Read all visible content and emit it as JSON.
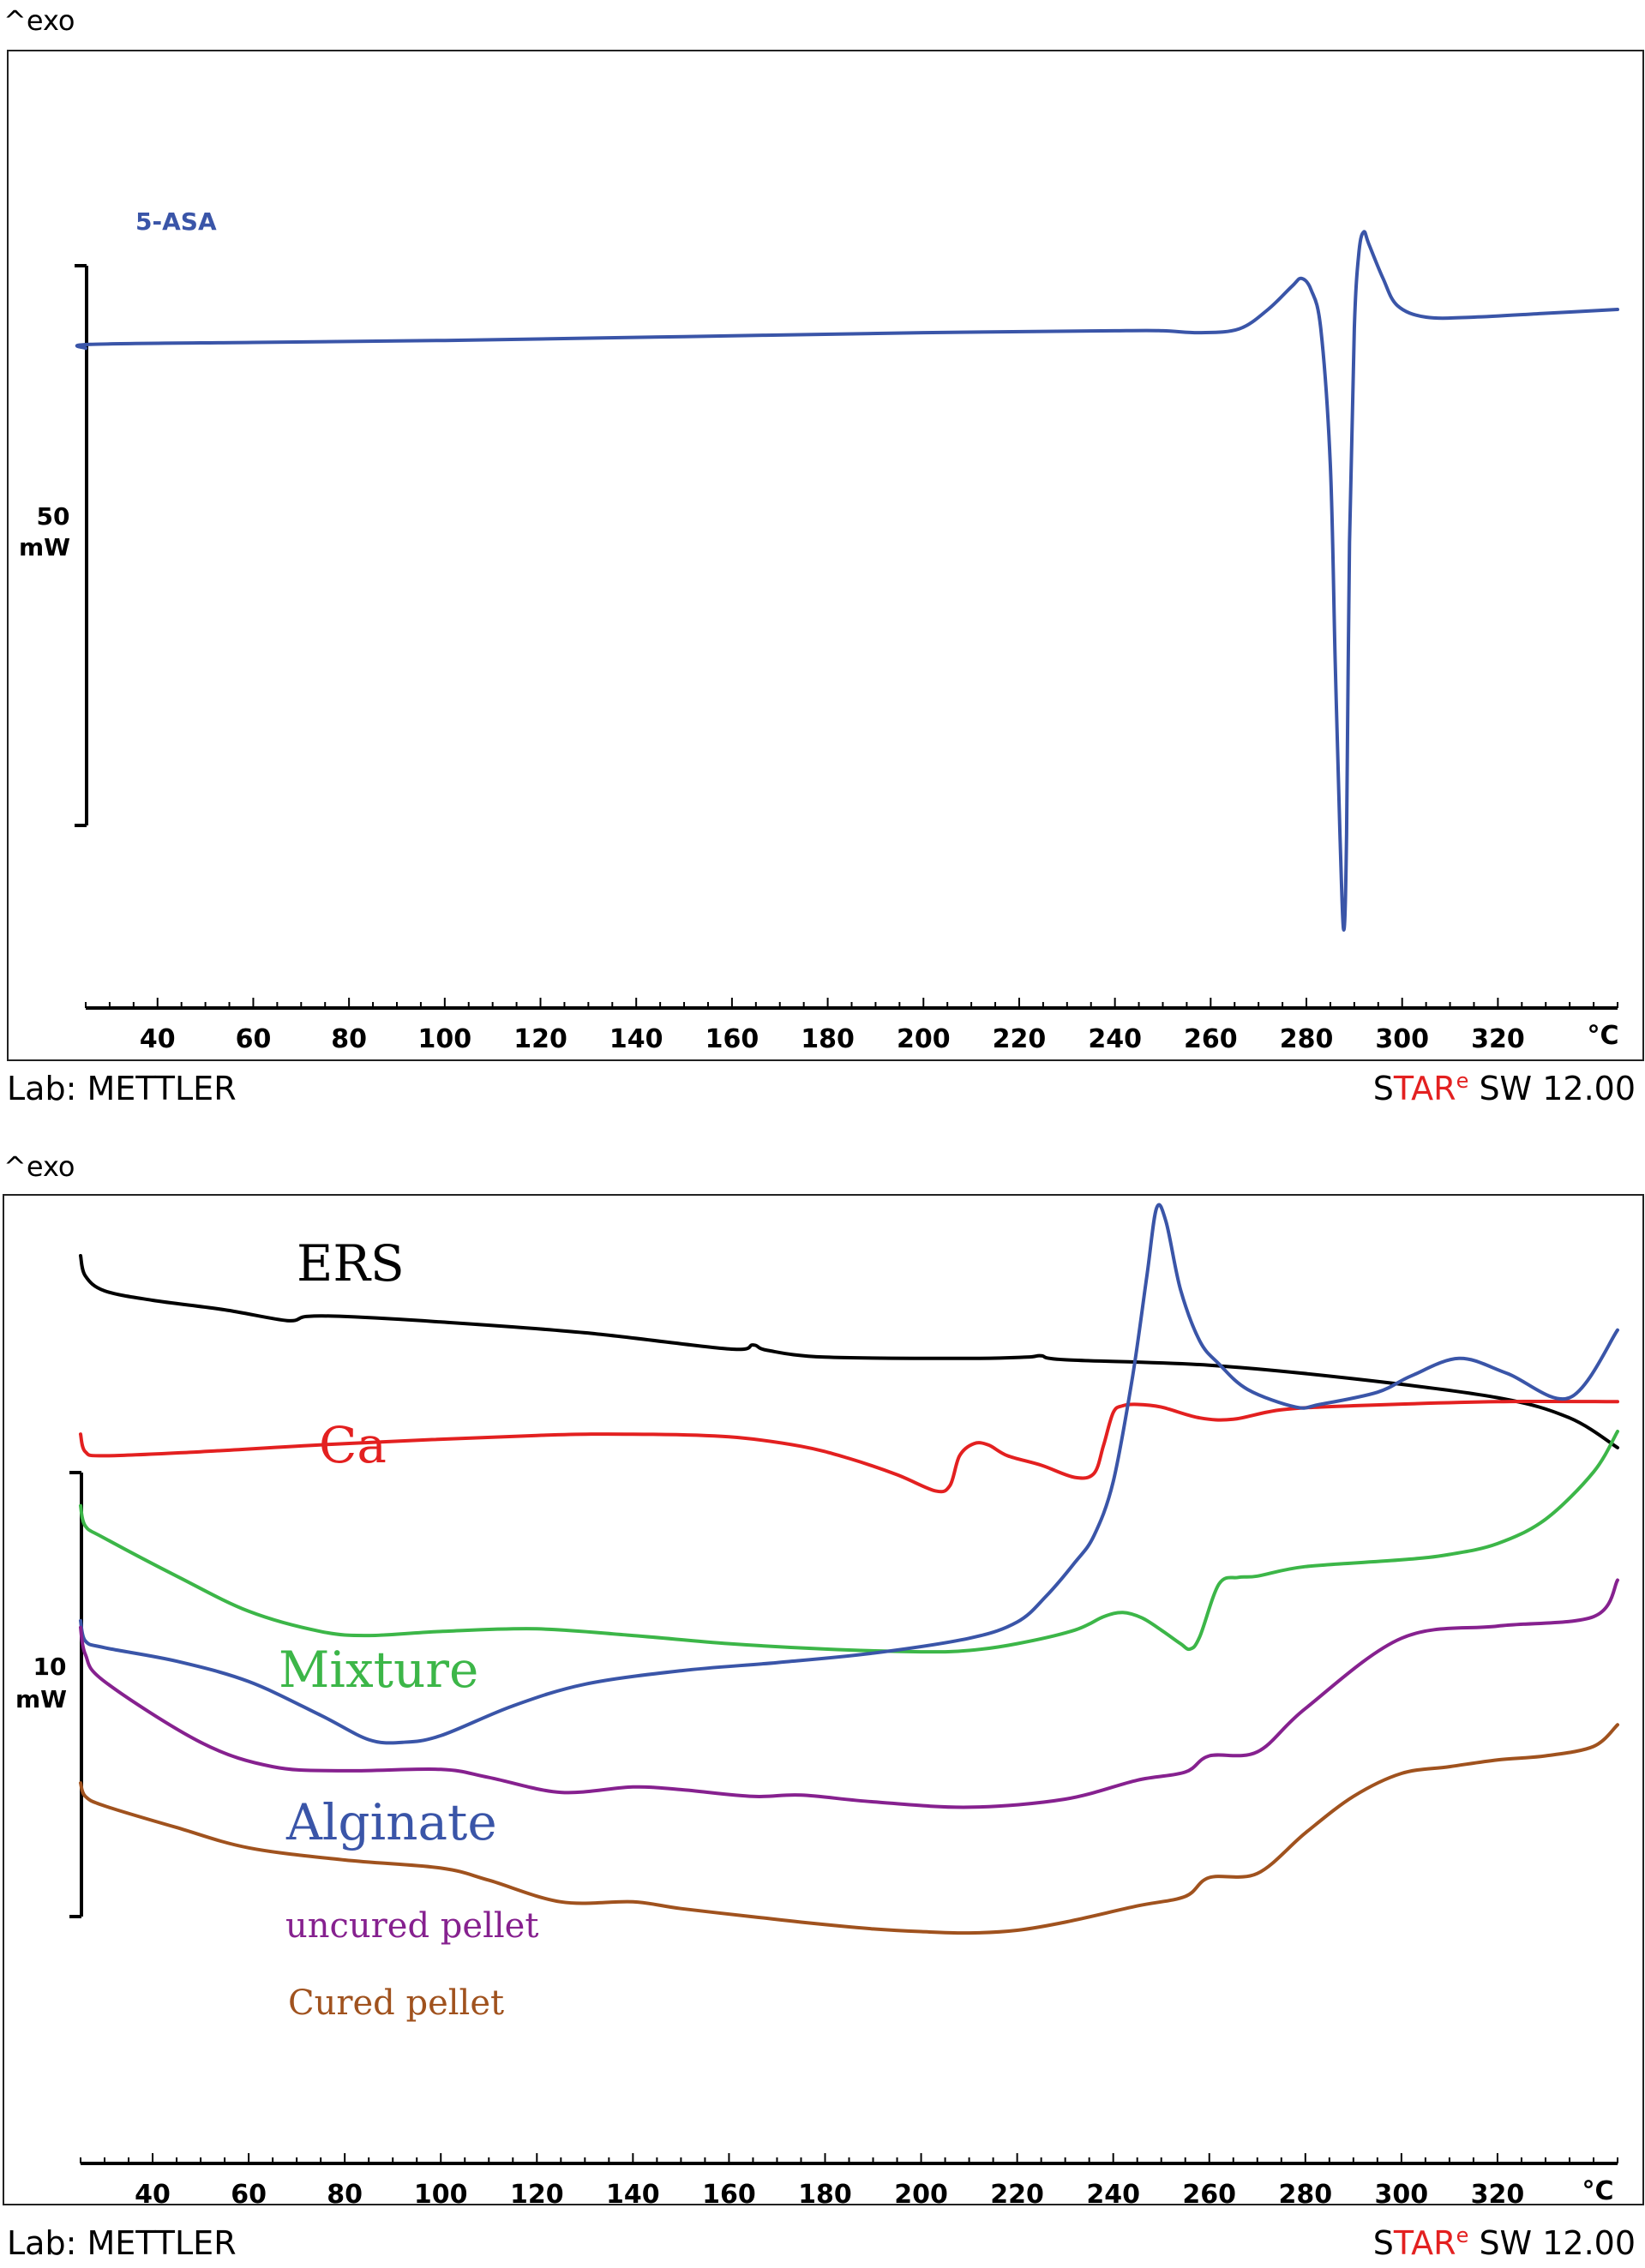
{
  "charts": [
    {
      "exo_label": "^exo",
      "footer_left": "Lab: METTLER",
      "footer_right": {
        "s": "S",
        "tar": "TAR",
        "e": "e",
        "rest": " SW 12.00"
      },
      "scale_bar": {
        "value": "50",
        "unit": "mW"
      },
      "x_unit": "°C"
    },
    {
      "exo_label": "^exo",
      "footer_left": "Lab: METTLER",
      "footer_right": {
        "s": "S",
        "tar": "TAR",
        "e": "e",
        "rest": " SW 12.00"
      },
      "scale_bar": {
        "value": "10",
        "unit": "mW"
      },
      "x_unit": "°C"
    }
  ],
  "chart_data": [
    {
      "type": "line",
      "title": "",
      "xlabel": "°C",
      "ylabel": "^exo",
      "xlim": [
        25,
        345
      ],
      "xticks": [
        40,
        60,
        80,
        100,
        120,
        140,
        160,
        180,
        200,
        220,
        240,
        260,
        280,
        300,
        320
      ],
      "ylim": [
        -150,
        50
      ],
      "series": [
        {
          "name": "5-ASA",
          "color": "#3a55a8",
          "x": [
            25,
            26,
            60,
            100,
            150,
            200,
            240,
            250,
            258,
            266,
            272,
            277,
            279,
            281,
            283,
            285,
            286,
            287,
            287.8,
            288.4,
            289,
            290,
            291,
            292,
            293,
            296,
            299,
            305,
            315,
            330,
            345
          ],
          "y": [
            0,
            1,
            1.5,
            2,
            3,
            4,
            4.5,
            4.5,
            4,
            5,
            10,
            16,
            18,
            15,
            5,
            -30,
            -80,
            -125,
            -150,
            -125,
            -50,
            5,
            25,
            30,
            27,
            18,
            11,
            8,
            8,
            9,
            10
          ]
        }
      ]
    },
    {
      "type": "line",
      "title": "",
      "xlabel": "°C",
      "ylabel": "^exo",
      "xlim": [
        25,
        345
      ],
      "xticks": [
        40,
        60,
        80,
        100,
        120,
        140,
        160,
        180,
        200,
        220,
        240,
        260,
        280,
        300,
        320
      ],
      "ylim": [
        -50,
        20
      ],
      "series": [
        {
          "name": "ERS",
          "color": "#000000",
          "x": [
            25,
            26,
            30,
            40,
            55,
            68,
            72,
            80,
            100,
            130,
            160,
            165,
            168,
            180,
            210,
            222,
            225,
            230,
            260,
            290,
            320,
            335,
            345
          ],
          "y": [
            15.5,
            14,
            12.9,
            12.2,
            11.5,
            10.7,
            11,
            11,
            10.6,
            9.8,
            8.6,
            8.9,
            8.5,
            8,
            7.9,
            8,
            8.1,
            7.8,
            7.4,
            6.4,
            5,
            3.5,
            1.3
          ]
        },
        {
          "name": "Ca",
          "color": "#e32020",
          "x": [
            25,
            26,
            30,
            50,
            80,
            120,
            140,
            160,
            175,
            185,
            195,
            203,
            206,
            208,
            211,
            214,
            218,
            225,
            232,
            236,
            238,
            240,
            242,
            245,
            250,
            258,
            265,
            275,
            290,
            320,
            345
          ],
          "y": [
            2.3,
            1,
            0.7,
            1,
            1.6,
            2.2,
            2.3,
            2.1,
            1.4,
            0.5,
            -0.7,
            -1.9,
            -1.5,
            0.7,
            1.6,
            1.5,
            0.7,
            0,
            -0.9,
            -0.6,
            1.5,
            3.9,
            4.4,
            4.5,
            4.3,
            3.5,
            3.4,
            4.1,
            4.4,
            4.7,
            4.7
          ]
        },
        {
          "name": "Mixture",
          "color": "#3cb648",
          "x": [
            25,
            26,
            30,
            45,
            60,
            75,
            85,
            100,
            120,
            140,
            160,
            180,
            200,
            210,
            220,
            232,
            238,
            242,
            246,
            250,
            254,
            256,
            258,
            262,
            266,
            270,
            280,
            300,
            310,
            320,
            330,
            340,
            345
          ],
          "y": [
            -3,
            -4.5,
            -5.4,
            -8.2,
            -10.8,
            -12.3,
            -12.6,
            -12.3,
            -12.1,
            -12.6,
            -13.2,
            -13.6,
            -13.8,
            -13.7,
            -13.2,
            -12.2,
            -11.2,
            -10.9,
            -11.3,
            -12.2,
            -13.2,
            -13.6,
            -12.7,
            -8.8,
            -8.3,
            -8.2,
            -7.5,
            -7,
            -6.6,
            -5.8,
            -4,
            -0.5,
            2.5
          ]
        },
        {
          "name": "Alginate",
          "color": "#3a55a8",
          "x": [
            25,
            26,
            30,
            45,
            60,
            75,
            85,
            92,
            100,
            115,
            130,
            150,
            170,
            190,
            210,
            220,
            226,
            232,
            236,
            240,
            244,
            247,
            249,
            251,
            254,
            258,
            262,
            268,
            278,
            283,
            295,
            302,
            312,
            322,
            335,
            345
          ],
          "y": [
            -11.5,
            -13,
            -13.5,
            -14.5,
            -16,
            -18.5,
            -20.3,
            -20.5,
            -20,
            -17.8,
            -16.2,
            -15.2,
            -14.6,
            -13.9,
            -12.8,
            -11.6,
            -9.7,
            -7.2,
            -5.2,
            -1.2,
            6.5,
            14,
            19,
            18,
            13,
            9.2,
            7.5,
            5.6,
            4.3,
            4.5,
            5.4,
            6.6,
            7.9,
            6.8,
            5,
            10
          ]
        },
        {
          "name": "uncured pellet",
          "color": "#86218f",
          "x": [
            25,
            26,
            30,
            50,
            65,
            80,
            100,
            110,
            125,
            140,
            150,
            165,
            175,
            190,
            210,
            230,
            245,
            255,
            260,
            270,
            280,
            300,
            320,
            340,
            345
          ],
          "y": [
            -12,
            -14,
            -16,
            -20.5,
            -22.3,
            -22.6,
            -22.5,
            -23.1,
            -24.2,
            -23.8,
            -24,
            -24.5,
            -24.4,
            -24.9,
            -25.3,
            -24.7,
            -23.3,
            -22.7,
            -21.5,
            -21.2,
            -18,
            -12.8,
            -11.9,
            -11.2,
            -8.5
          ]
        },
        {
          "name": "Cured pellet",
          "color": "#a0521e",
          "x": [
            25,
            26,
            30,
            45,
            60,
            80,
            100,
            110,
            125,
            140,
            150,
            165,
            175,
            190,
            200,
            210,
            220,
            230,
            245,
            255,
            260,
            270,
            280,
            290,
            300,
            310,
            320,
            330,
            340,
            345
          ],
          "y": [
            -23.5,
            -24.5,
            -25.2,
            -26.8,
            -28.3,
            -29.2,
            -29.8,
            -30.7,
            -32.3,
            -32.3,
            -32.8,
            -33.4,
            -33.8,
            -34.3,
            -34.5,
            -34.6,
            -34.4,
            -33.8,
            -32.6,
            -31.9,
            -30.5,
            -30.2,
            -27.2,
            -24.5,
            -22.8,
            -22.3,
            -21.8,
            -21.5,
            -20.8,
            -19.2
          ]
        }
      ]
    }
  ]
}
